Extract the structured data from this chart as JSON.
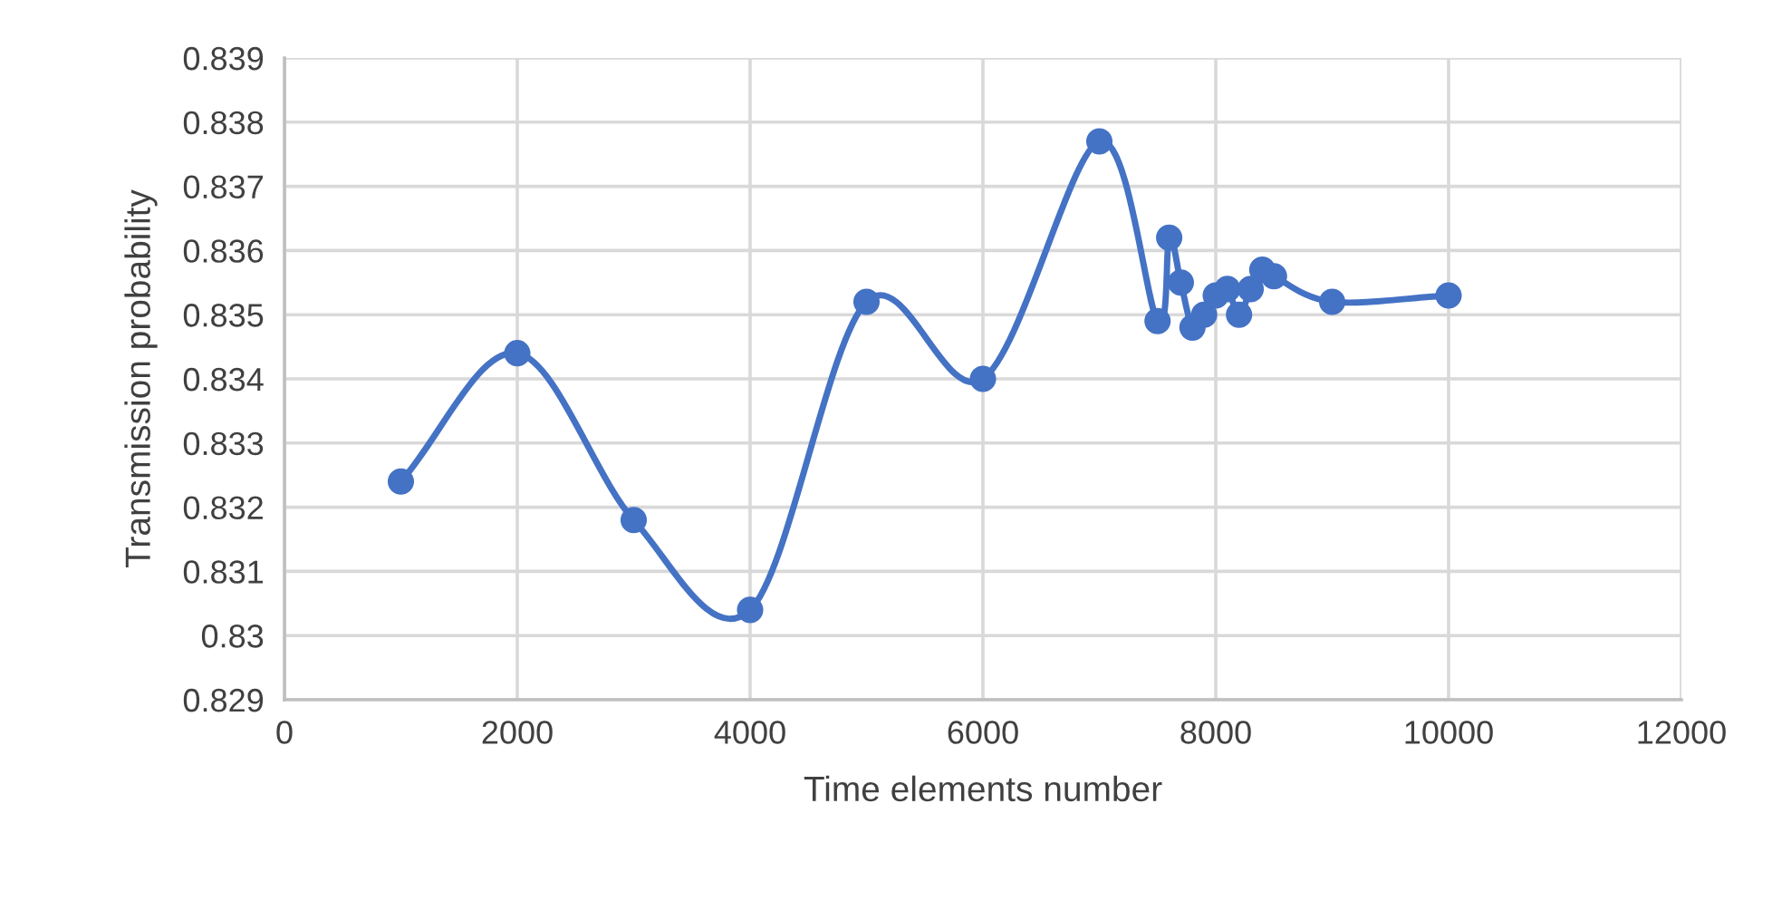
{
  "chart_data": {
    "type": "line",
    "xlabel": "Time elements number",
    "ylabel": "Transmission probability",
    "x": [
      1000,
      2000,
      3000,
      4000,
      5000,
      6000,
      7000,
      7500,
      7600,
      7700,
      7800,
      7900,
      8000,
      8100,
      8200,
      8300,
      8400,
      8500,
      9000,
      10000
    ],
    "series": [
      {
        "color": "#4472c4",
        "values": [
          0.8324,
          0.8344,
          0.8318,
          0.8304,
          0.8352,
          0.834,
          0.8377,
          0.8349,
          0.8362,
          0.8355,
          0.8348,
          0.835,
          0.8353,
          0.8354,
          0.835,
          0.8354,
          0.8357,
          0.8356,
          0.8352,
          0.8353
        ]
      }
    ],
    "xlim": [
      0,
      12000
    ],
    "xticks": [
      0,
      2000,
      4000,
      6000,
      8000,
      10000,
      12000
    ],
    "ylim": [
      0.829,
      0.839
    ],
    "yticks": [
      0.829,
      0.83,
      0.831,
      0.832,
      0.833,
      0.834,
      0.835,
      0.836,
      0.837,
      0.838,
      0.839
    ],
    "grid": true,
    "marker": "circle",
    "line_style": "solid",
    "legend": false
  }
}
